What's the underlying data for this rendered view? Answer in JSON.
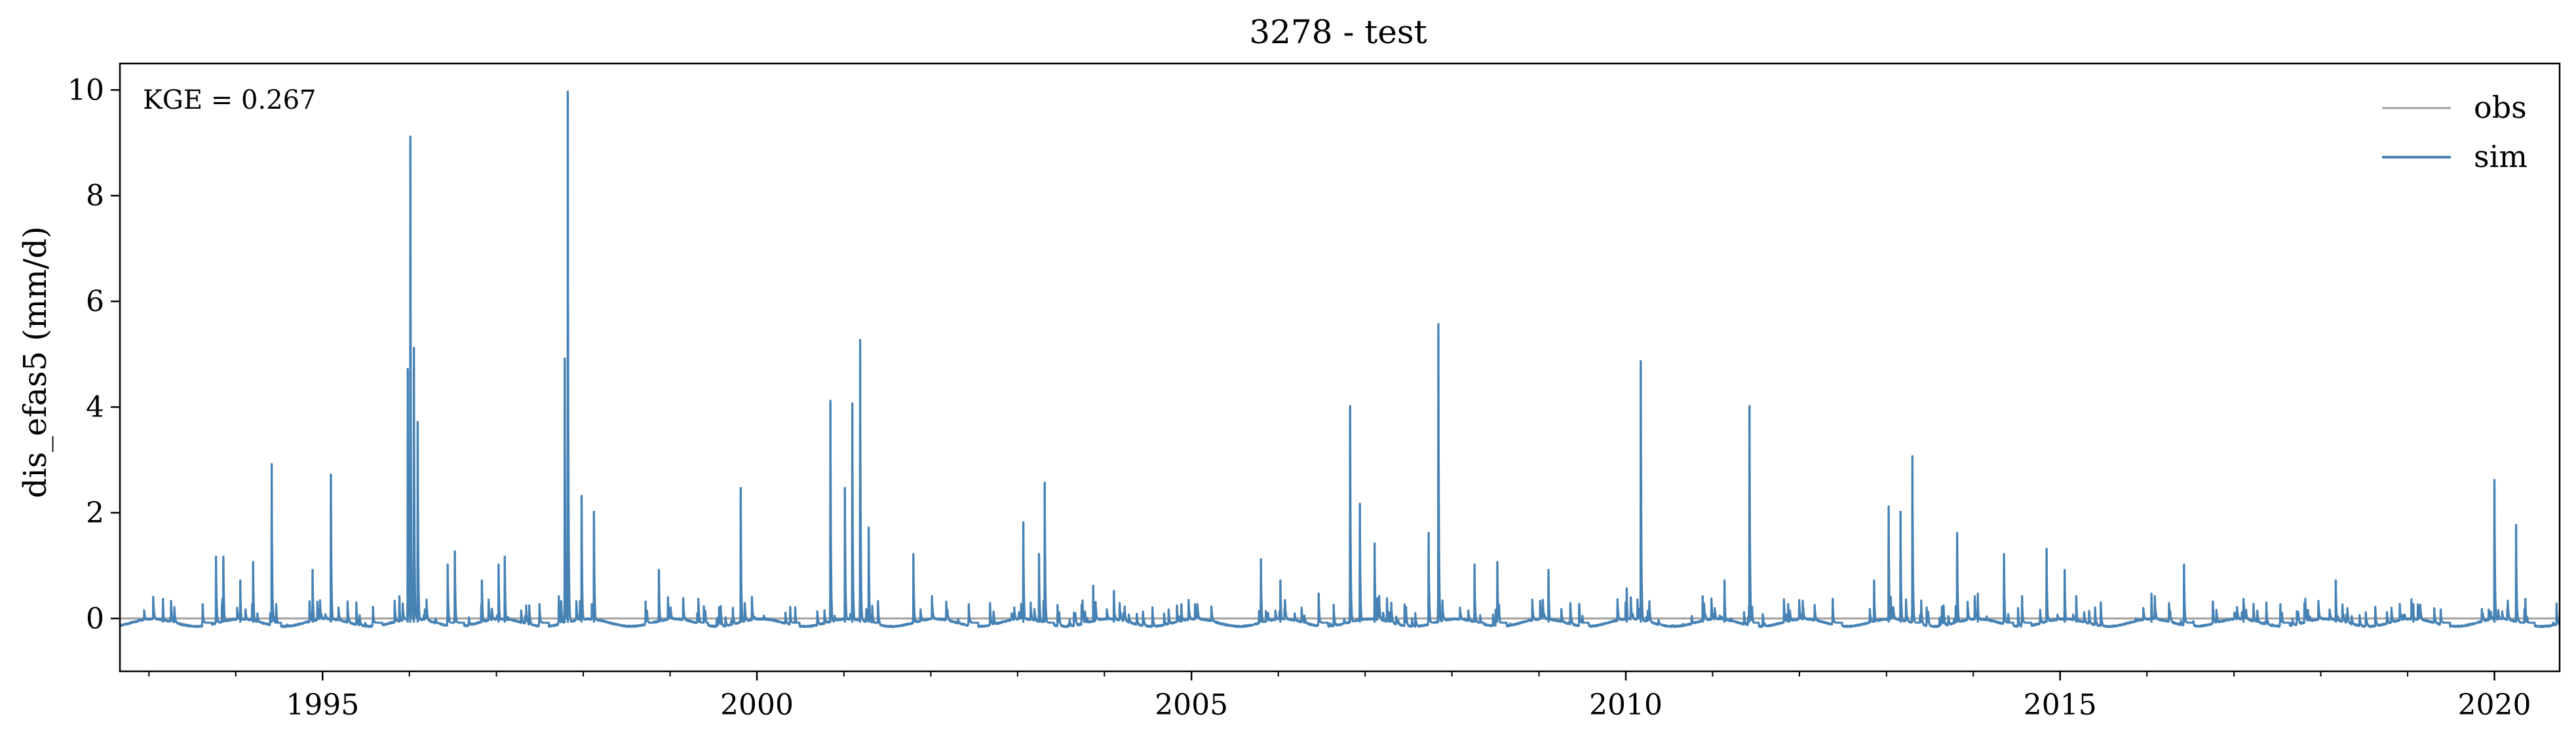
{
  "chart_data": {
    "type": "line",
    "title": "3278 - test",
    "xlabel": "",
    "ylabel": "dis_efas5 (mm/d)",
    "x_axis": "date",
    "xlim": [
      "1992-09-01",
      "2020-10-01"
    ],
    "ylim": [
      -1.0,
      10.5
    ],
    "x_ticks": [
      "1995",
      "2000",
      "2005",
      "2010",
      "2015",
      "2020"
    ],
    "y_ticks": [
      "0",
      "2",
      "4",
      "6",
      "8",
      "10"
    ],
    "grid": false,
    "legend": {
      "placement": "top-right",
      "entries": [
        "obs",
        "sim"
      ]
    },
    "annotation": "KGE = 0.267",
    "colors": {
      "obs": "#a0a0a0",
      "sim": "#4682b4",
      "axes": "#000000",
      "background": "#ffffff"
    },
    "series": [
      {
        "name": "obs",
        "x": [
          "1992-09-01",
          "2020-10-01"
        ],
        "values": [
          0.0,
          0.0
        ]
      },
      {
        "name": "sim",
        "baseline": -0.08,
        "seasonal_amplitude": 0.07,
        "peaks": [
          [
            "1993-03-01",
            0.45
          ],
          [
            "1993-08-15",
            0.35
          ],
          [
            "1993-10-10",
            1.25
          ],
          [
            "1993-11-10",
            1.25
          ],
          [
            "1994-01-20",
            0.8
          ],
          [
            "1994-03-15",
            1.15
          ],
          [
            "1994-06-01",
            3.0
          ],
          [
            "1994-11-20",
            1.0
          ],
          [
            "1995-02-05",
            2.8
          ],
          [
            "1995-08-01",
            0.3
          ],
          [
            "1995-11-20",
            0.5
          ],
          [
            "1995-12-25",
            4.8
          ],
          [
            "1996-01-05",
            9.2
          ],
          [
            "1996-01-20",
            5.2
          ],
          [
            "1996-02-05",
            3.8
          ],
          [
            "1996-06-10",
            1.1
          ],
          [
            "1996-07-10",
            1.35
          ],
          [
            "1996-11-01",
            0.8
          ],
          [
            "1997-01-10",
            1.1
          ],
          [
            "1997-02-05",
            1.25
          ],
          [
            "1997-07-01",
            0.35
          ],
          [
            "1997-09-20",
            0.5
          ],
          [
            "1997-10-15",
            5.0
          ],
          [
            "1997-10-28",
            10.05
          ],
          [
            "1997-12-25",
            2.4
          ],
          [
            "1998-02-15",
            2.1
          ],
          [
            "1998-09-20",
            0.4
          ],
          [
            "1998-11-15",
            1.0
          ],
          [
            "1999-05-01",
            0.3
          ],
          [
            "1999-10-25",
            2.55
          ],
          [
            "2000-05-20",
            0.3
          ],
          [
            "2000-11-05",
            4.2
          ],
          [
            "2001-01-05",
            2.55
          ],
          [
            "2001-02-05",
            4.15
          ],
          [
            "2001-03-10",
            5.35
          ],
          [
            "2001-04-15",
            1.8
          ],
          [
            "2001-10-20",
            1.3
          ],
          [
            "2002-06-10",
            0.35
          ],
          [
            "2003-01-25",
            1.9
          ],
          [
            "2003-04-01",
            1.3
          ],
          [
            "2003-04-25",
            2.65
          ],
          [
            "2003-11-15",
            0.7
          ],
          [
            "2004-02-10",
            0.6
          ],
          [
            "2004-11-20",
            0.35
          ],
          [
            "2005-10-20",
            1.2
          ],
          [
            "2006-01-10",
            0.8
          ],
          [
            "2006-06-20",
            0.55
          ],
          [
            "2006-10-30",
            4.1
          ],
          [
            "2006-12-10",
            2.25
          ],
          [
            "2007-02-10",
            1.5
          ],
          [
            "2007-09-25",
            1.7
          ],
          [
            "2007-11-05",
            5.65
          ],
          [
            "2008-04-05",
            1.1
          ],
          [
            "2008-07-10",
            1.15
          ],
          [
            "2009-02-10",
            1.0
          ],
          [
            "2009-06-20",
            0.3
          ],
          [
            "2010-01-05",
            0.65
          ],
          [
            "2010-03-05",
            4.95
          ],
          [
            "2010-11-20",
            0.5
          ],
          [
            "2011-02-20",
            0.8
          ],
          [
            "2011-06-05",
            4.1
          ],
          [
            "2011-11-15",
            0.35
          ],
          [
            "2012-05-20",
            0.45
          ],
          [
            "2012-11-10",
            0.8
          ],
          [
            "2013-01-10",
            2.2
          ],
          [
            "2013-03-01",
            2.1
          ],
          [
            "2013-04-20",
            3.15
          ],
          [
            "2013-10-25",
            1.7
          ],
          [
            "2014-01-20",
            0.55
          ],
          [
            "2014-05-10",
            1.3
          ],
          [
            "2014-07-25",
            0.5
          ],
          [
            "2014-11-05",
            1.4
          ],
          [
            "2015-01-20",
            1.0
          ],
          [
            "2015-03-10",
            0.5
          ],
          [
            "2016-01-20",
            0.55
          ],
          [
            "2016-06-05",
            1.1
          ],
          [
            "2017-02-10",
            0.45
          ],
          [
            "2017-07-15",
            0.35
          ],
          [
            "2018-03-05",
            0.8
          ],
          [
            "2019-01-25",
            0.35
          ],
          [
            "2019-05-20",
            0.25
          ],
          [
            "2020-01-01",
            2.7
          ],
          [
            "2020-04-01",
            1.85
          ],
          [
            "2020-05-10",
            0.45
          ]
        ]
      }
    ]
  }
}
